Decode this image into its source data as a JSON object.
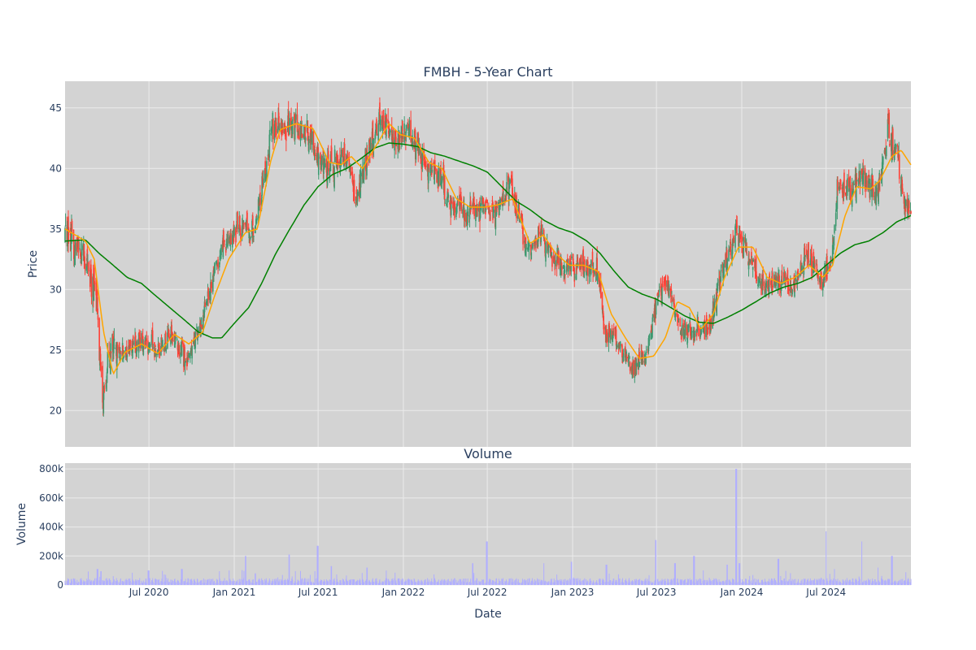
{
  "colors": {
    "plot_bg": "#d3d3d3",
    "grid": "#ebebeb",
    "increasing": "#3d9970",
    "decreasing": "#ff4136",
    "ma_short": "#ffa500",
    "ma_long": "#008000",
    "volume": "#b0aeff",
    "text": "#2a3f5f"
  },
  "chart_data": [
    {
      "type": "candlestick",
      "title": "FMBH - 5-Year Chart",
      "ylabel": "Price",
      "ylim": [
        17,
        47.2
      ],
      "yticks": [
        20,
        25,
        30,
        35,
        40,
        45
      ],
      "xlim": [
        "2020-01-02",
        "2024-12-31"
      ],
      "xticks": [
        "2020-07-01",
        "2021-01-01",
        "2021-07-01",
        "2022-01-01",
        "2022-07-01",
        "2023-01-01",
        "2023-07-01",
        "2024-01-01",
        "2024-07-01"
      ],
      "xtick_labels": [
        "Jul 2020",
        "Jan 2021",
        "Jul 2021",
        "Jan 2022",
        "Jul 2022",
        "Jan 2023",
        "Jul 2023",
        "Jan 2024",
        "Jul 2024"
      ],
      "grid": true,
      "price_path": [
        [
          "2020-01-02",
          34.8
        ],
        [
          "2020-02-15",
          33.0
        ],
        [
          "2020-03-10",
          29.0
        ],
        [
          "2020-03-23",
          21.0
        ],
        [
          "2020-04-10",
          25.5
        ],
        [
          "2020-05-15",
          25.0
        ],
        [
          "2020-06-10",
          26.0
        ],
        [
          "2020-07-20",
          25.0
        ],
        [
          "2020-08-20",
          26.5
        ],
        [
          "2020-09-20",
          24.0
        ],
        [
          "2020-10-20",
          27.0
        ],
        [
          "2020-11-10",
          30.5
        ],
        [
          "2020-12-10",
          33.5
        ],
        [
          "2021-01-10",
          35.5
        ],
        [
          "2021-02-10",
          34.5
        ],
        [
          "2021-03-05",
          39.0
        ],
        [
          "2021-03-25",
          43.5
        ],
        [
          "2021-05-01",
          43.5
        ],
        [
          "2021-06-10",
          43.0
        ],
        [
          "2021-07-10",
          40.0
        ],
        [
          "2021-08-10",
          40.5
        ],
        [
          "2021-09-01",
          41.0
        ],
        [
          "2021-09-20",
          37.5
        ],
        [
          "2021-10-20",
          41.5
        ],
        [
          "2021-11-15",
          44.5
        ],
        [
          "2021-12-10",
          42.0
        ],
        [
          "2022-01-10",
          43.5
        ],
        [
          "2022-02-15",
          40.5
        ],
        [
          "2022-03-20",
          39.5
        ],
        [
          "2022-04-15",
          37.0
        ],
        [
          "2022-05-20",
          36.5
        ],
        [
          "2022-06-20",
          37.0
        ],
        [
          "2022-07-20",
          36.5
        ],
        [
          "2022-08-20",
          38.5
        ],
        [
          "2022-09-25",
          33.5
        ],
        [
          "2022-10-25",
          34.5
        ],
        [
          "2022-11-20",
          32.5
        ],
        [
          "2022-12-20",
          32.0
        ],
        [
          "2023-01-25",
          32.0
        ],
        [
          "2023-02-25",
          31.5
        ],
        [
          "2023-03-12",
          26.5
        ],
        [
          "2023-04-10",
          25.5
        ],
        [
          "2023-05-10",
          23.5
        ],
        [
          "2023-06-10",
          24.5
        ],
        [
          "2023-07-05",
          29.5
        ],
        [
          "2023-07-25",
          30.5
        ],
        [
          "2023-08-20",
          27.0
        ],
        [
          "2023-09-20",
          26.5
        ],
        [
          "2023-10-25",
          27.0
        ],
        [
          "2023-11-20",
          31.5
        ],
        [
          "2023-12-20",
          35.0
        ],
        [
          "2024-01-20",
          32.5
        ],
        [
          "2024-02-20",
          30.0
        ],
        [
          "2024-03-20",
          31.0
        ],
        [
          "2024-04-20",
          30.0
        ],
        [
          "2024-05-20",
          33.0
        ],
        [
          "2024-06-20",
          30.5
        ],
        [
          "2024-07-10",
          32.0
        ],
        [
          "2024-07-25",
          38.0
        ],
        [
          "2024-08-20",
          38.5
        ],
        [
          "2024-09-20",
          39.5
        ],
        [
          "2024-10-20",
          38.0
        ],
        [
          "2024-11-10",
          43.0
        ],
        [
          "2024-12-01",
          42.0
        ],
        [
          "2024-12-12",
          37.5
        ],
        [
          "2024-12-31",
          37.0
        ]
      ],
      "moving_average_short": [
        [
          "2020-01-02",
          35.0
        ],
        [
          "2020-02-15",
          34.0
        ],
        [
          "2020-03-05",
          32.5
        ],
        [
          "2020-03-25",
          26.5
        ],
        [
          "2020-04-15",
          23.0
        ],
        [
          "2020-05-10",
          24.8
        ],
        [
          "2020-06-15",
          25.5
        ],
        [
          "2020-07-20",
          24.7
        ],
        [
          "2020-08-25",
          26.3
        ],
        [
          "2020-09-25",
          25.5
        ],
        [
          "2020-10-25",
          26.5
        ],
        [
          "2020-11-20",
          29.5
        ],
        [
          "2020-12-20",
          32.5
        ],
        [
          "2021-01-25",
          34.7
        ],
        [
          "2021-02-20",
          35.0
        ],
        [
          "2021-03-20",
          40.5
        ],
        [
          "2021-04-10",
          43.2
        ],
        [
          "2021-05-15",
          43.7
        ],
        [
          "2021-06-20",
          43.3
        ],
        [
          "2021-07-25",
          40.5
        ],
        [
          "2021-08-20",
          40.3
        ],
        [
          "2021-09-10",
          41.0
        ],
        [
          "2021-10-05",
          40.0
        ],
        [
          "2021-11-05",
          42.0
        ],
        [
          "2021-12-01",
          43.7
        ],
        [
          "2021-12-25",
          42.8
        ],
        [
          "2022-01-25",
          42.5
        ],
        [
          "2022-02-25",
          40.5
        ],
        [
          "2022-03-25",
          40.0
        ],
        [
          "2022-04-25",
          37.5
        ],
        [
          "2022-05-25",
          36.8
        ],
        [
          "2022-06-25",
          36.8
        ],
        [
          "2022-07-25",
          37.0
        ],
        [
          "2022-08-25",
          37.5
        ],
        [
          "2022-10-01",
          33.8
        ],
        [
          "2022-10-30",
          34.5
        ],
        [
          "2022-11-25",
          33.0
        ],
        [
          "2022-12-25",
          32.0
        ],
        [
          "2023-01-25",
          32.0
        ],
        [
          "2023-02-25",
          31.5
        ],
        [
          "2023-03-25",
          28.0
        ],
        [
          "2023-04-25",
          26.0
        ],
        [
          "2023-05-25",
          24.3
        ],
        [
          "2023-06-25",
          24.5
        ],
        [
          "2023-07-20",
          26.0
        ],
        [
          "2023-08-15",
          29.0
        ],
        [
          "2023-09-10",
          28.5
        ],
        [
          "2023-10-05",
          26.7
        ],
        [
          "2023-11-01",
          28.0
        ],
        [
          "2023-11-25",
          31.0
        ],
        [
          "2023-12-25",
          33.5
        ],
        [
          "2024-01-25",
          33.5
        ],
        [
          "2024-02-25",
          31.0
        ],
        [
          "2024-03-25",
          30.5
        ],
        [
          "2024-04-25",
          31.0
        ],
        [
          "2024-05-25",
          32.0
        ],
        [
          "2024-06-25",
          31.0
        ],
        [
          "2024-07-15",
          32.0
        ],
        [
          "2024-08-10",
          36.0
        ],
        [
          "2024-09-05",
          38.5
        ],
        [
          "2024-10-05",
          38.3
        ],
        [
          "2024-10-25",
          39.0
        ],
        [
          "2024-11-20",
          41.0
        ],
        [
          "2024-12-10",
          41.5
        ],
        [
          "2024-12-31",
          40.3
        ]
      ],
      "moving_average_long": [
        [
          "2020-01-02",
          34.0
        ],
        [
          "2020-02-15",
          34.1
        ],
        [
          "2020-03-15",
          33.0
        ],
        [
          "2020-04-15",
          32.0
        ],
        [
          "2020-05-15",
          31.0
        ],
        [
          "2020-06-15",
          30.5
        ],
        [
          "2020-07-15",
          29.5
        ],
        [
          "2020-08-15",
          28.5
        ],
        [
          "2020-09-15",
          27.5
        ],
        [
          "2020-10-15",
          26.5
        ],
        [
          "2020-11-15",
          26.0
        ],
        [
          "2020-12-05",
          26.0
        ],
        [
          "2021-01-01",
          27.2
        ],
        [
          "2021-02-01",
          28.5
        ],
        [
          "2021-03-01",
          30.5
        ],
        [
          "2021-04-01",
          33.0
        ],
        [
          "2021-05-01",
          35.0
        ],
        [
          "2021-06-01",
          37.0
        ],
        [
          "2021-07-01",
          38.5
        ],
        [
          "2021-08-01",
          39.5
        ],
        [
          "2021-09-01",
          40.0
        ],
        [
          "2021-10-01",
          40.8
        ],
        [
          "2021-11-01",
          41.7
        ],
        [
          "2021-12-01",
          42.1
        ],
        [
          "2022-01-01",
          42.0
        ],
        [
          "2022-02-01",
          41.8
        ],
        [
          "2022-03-01",
          41.3
        ],
        [
          "2022-04-01",
          41.0
        ],
        [
          "2022-05-01",
          40.6
        ],
        [
          "2022-06-01",
          40.2
        ],
        [
          "2022-07-01",
          39.7
        ],
        [
          "2022-08-01",
          38.5
        ],
        [
          "2022-09-01",
          37.3
        ],
        [
          "2022-10-01",
          36.6
        ],
        [
          "2022-11-01",
          35.7
        ],
        [
          "2022-12-01",
          35.1
        ],
        [
          "2023-01-01",
          34.7
        ],
        [
          "2023-02-01",
          34.0
        ],
        [
          "2023-03-01",
          33.0
        ],
        [
          "2023-04-01",
          31.5
        ],
        [
          "2023-05-01",
          30.2
        ],
        [
          "2023-06-01",
          29.6
        ],
        [
          "2023-07-01",
          29.2
        ],
        [
          "2023-08-01",
          28.5
        ],
        [
          "2023-09-01",
          27.8
        ],
        [
          "2023-10-01",
          27.3
        ],
        [
          "2023-11-01",
          27.2
        ],
        [
          "2023-12-01",
          27.7
        ],
        [
          "2024-01-01",
          28.3
        ],
        [
          "2024-02-01",
          29.0
        ],
        [
          "2024-03-01",
          29.7
        ],
        [
          "2024-04-01",
          30.2
        ],
        [
          "2024-05-01",
          30.5
        ],
        [
          "2024-06-01",
          31.0
        ],
        [
          "2024-07-01",
          32.0
        ],
        [
          "2024-08-01",
          33.0
        ],
        [
          "2024-09-01",
          33.7
        ],
        [
          "2024-10-01",
          34.0
        ],
        [
          "2024-11-01",
          34.7
        ],
        [
          "2024-12-01",
          35.6
        ],
        [
          "2024-12-31",
          36.1
        ]
      ]
    },
    {
      "type": "bar",
      "title": "Volume",
      "xlabel": "Date",
      "ylabel": "Volume",
      "ylim": [
        0,
        840000
      ],
      "yticks": [
        0,
        200000,
        400000,
        600000,
        800000
      ],
      "ytick_labels": [
        "0",
        "200k",
        "400k",
        "600k",
        "800k"
      ],
      "grid": true,
      "baseline": 28000,
      "spikes": [
        [
          "2020-03-12",
          110000
        ],
        [
          "2020-03-20",
          95000
        ],
        [
          "2020-06-30",
          100000
        ],
        [
          "2020-09-10",
          110000
        ],
        [
          "2020-12-20",
          100000
        ],
        [
          "2021-01-25",
          200000
        ],
        [
          "2021-02-15",
          80000
        ],
        [
          "2021-04-30",
          210000
        ],
        [
          "2021-06-30",
          270000
        ],
        [
          "2021-07-30",
          130000
        ],
        [
          "2021-10-15",
          120000
        ],
        [
          "2022-05-30",
          150000
        ],
        [
          "2022-06-30",
          300000
        ],
        [
          "2022-10-30",
          150000
        ],
        [
          "2022-12-30",
          160000
        ],
        [
          "2023-03-15",
          140000
        ],
        [
          "2023-06-30",
          310000
        ],
        [
          "2023-08-10",
          150000
        ],
        [
          "2023-09-20",
          200000
        ],
        [
          "2023-12-01",
          140000
        ],
        [
          "2023-12-20",
          800000
        ],
        [
          "2023-12-27",
          150000
        ],
        [
          "2024-03-20",
          180000
        ],
        [
          "2024-06-30",
          370000
        ],
        [
          "2024-07-20",
          110000
        ],
        [
          "2024-09-15",
          300000
        ],
        [
          "2024-10-20",
          120000
        ],
        [
          "2024-11-20",
          200000
        ]
      ]
    }
  ]
}
